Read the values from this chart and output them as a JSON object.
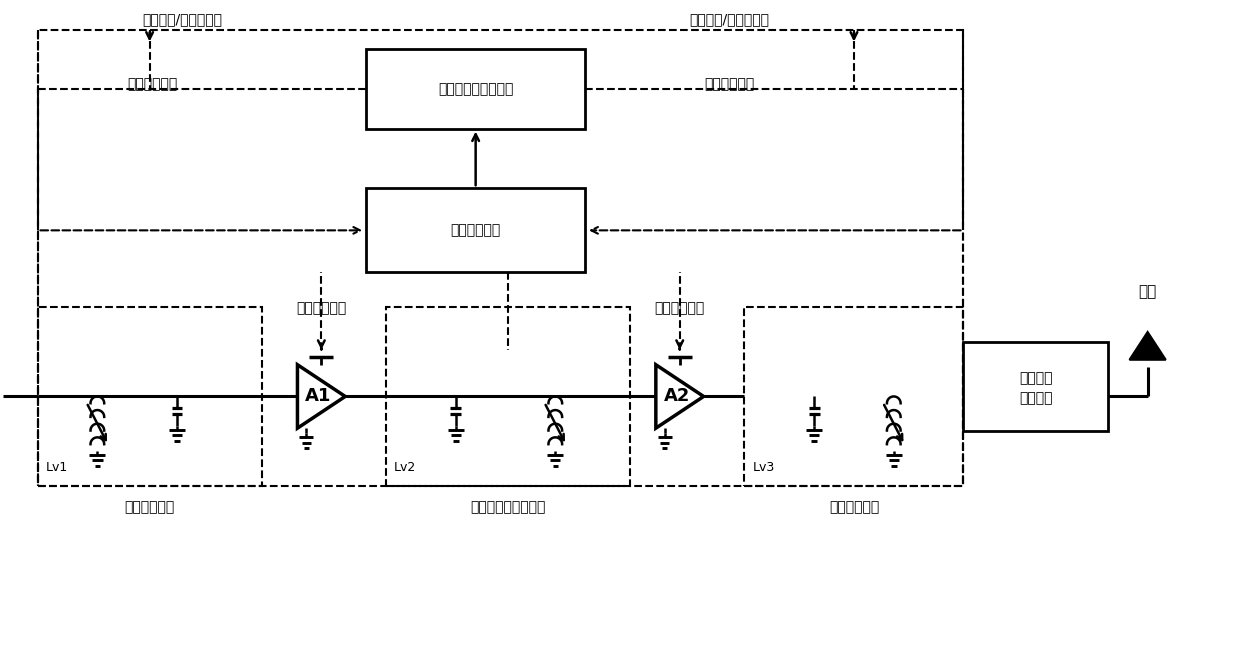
{
  "bg_color": "#ffffff",
  "texts": {
    "ctrl_box": "控制及偏置产生电路",
    "env_box": "包络检测电路",
    "ant_box_line1": "天线阻抗",
    "ant_box_line2": "变换网络",
    "lv1_label": "Lv1",
    "lv2_label": "Lv2",
    "lv3_label": "Lv3",
    "a1_label": "A1",
    "a2_label": "A2",
    "input_match": "输入阻抗匹配",
    "inter_match": "级间耦合与匹配网络",
    "output_match": "输出阻抗匹配",
    "antenna": "天线",
    "top_left_text": "可变电感/变压器调节",
    "top_right_text": "可变电感/变压器调节",
    "bias_left": "偏置控制信号",
    "bias_right": "偏置控制信号",
    "trans_left": "晶体管放大器",
    "trans_right": "晶体管放大器"
  },
  "layout": {
    "fig_w": 12.4,
    "fig_h": 6.62,
    "dpi": 100
  }
}
